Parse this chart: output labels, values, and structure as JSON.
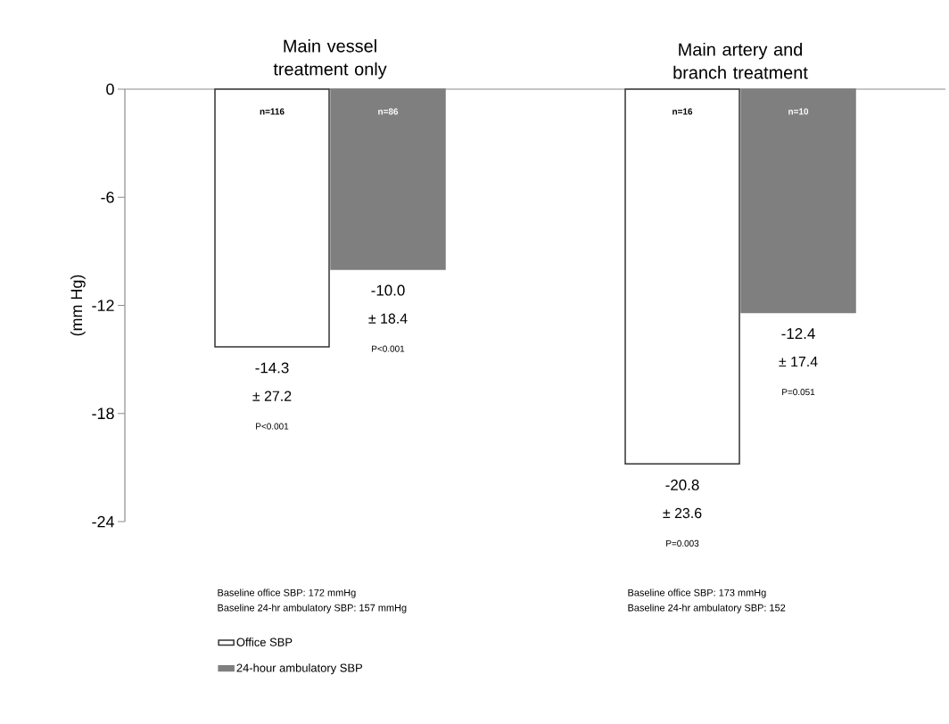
{
  "chart_data": {
    "type": "bar",
    "ylabel": "(mm Hg)",
    "categories": [
      "Main vessel treatment only",
      "Main artery and branch treatment"
    ],
    "series": [
      {
        "name": "Office SBP",
        "color": "#ffffff",
        "values": [
          -14.3,
          -20.8
        ],
        "value_labels": [
          "-14.3",
          "-20.8"
        ]
      },
      {
        "name": "24-hour ambulatory SBP",
        "color": "#7f7f7f",
        "values": [
          -10.0,
          -12.4
        ],
        "value_labels": [
          "-10.0",
          "-12.4"
        ]
      }
    ],
    "ylim": [
      -24,
      0
    ],
    "yticks": [
      0,
      -6,
      -12,
      -18,
      -24
    ],
    "legend": "bottom left",
    "annotations": [
      "n=116",
      "± 27.2",
      "P<0.001",
      "n=86",
      "± 18.4",
      "P<0.001",
      "n=16",
      "± 23.6",
      "P=0.003",
      "n=10",
      "± 17.4",
      "P=0.051",
      "Baseline office SBP: 172 mmHg",
      "Baseline 24-hr ambulatory  SBP: 157 mmHg",
      "Baseline office SBP: 173 mmHg",
      "Baseline 24-hr ambulatory SBP: 152"
    ]
  }
}
